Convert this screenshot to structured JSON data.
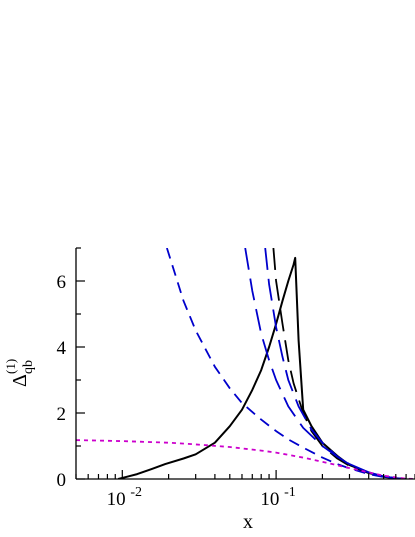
{
  "chart_data": {
    "type": "line",
    "title": "",
    "xlabel": "x",
    "ylabel": {
      "main": "Δ",
      "sub": "qb",
      "sup": "(1)"
    },
    "x_scale": "log",
    "xlim": [
      0.005,
      0.8
    ],
    "ylim": [
      0,
      7
    ],
    "x_ticks": [
      {
        "value": 0.01,
        "base": "10",
        "exp": "-2"
      },
      {
        "value": 0.1,
        "base": "10",
        "exp": "-1"
      }
    ],
    "y_ticks": [
      0,
      2,
      4,
      6
    ],
    "grid": false,
    "legend": "none",
    "series": [
      {
        "color": "#000000",
        "style": "solid",
        "x": [
          0.0094,
          0.0125,
          0.0155,
          0.019,
          0.025,
          0.03,
          0.04,
          0.05,
          0.06,
          0.07,
          0.08,
          0.09,
          0.1,
          0.11,
          0.12,
          0.13,
          0.133,
          0.14,
          0.15,
          0.17,
          0.2,
          0.25,
          0.3,
          0.4,
          0.5,
          0.6,
          0.7
        ],
        "y": [
          0.0,
          0.15,
          0.3,
          0.45,
          0.62,
          0.75,
          1.1,
          1.6,
          2.1,
          2.7,
          3.3,
          4.0,
          4.7,
          5.4,
          6.0,
          6.5,
          6.7,
          4.2,
          2.1,
          1.6,
          1.1,
          0.7,
          0.42,
          0.2,
          0.07,
          0.02,
          0.0
        ]
      },
      {
        "color": "#000000",
        "style": "longdash",
        "x": [
          0.096,
          0.1,
          0.11,
          0.12,
          0.13,
          0.15,
          0.17,
          0.2,
          0.25,
          0.3,
          0.4,
          0.5,
          0.6,
          0.7
        ],
        "y": [
          7.0,
          6.0,
          4.7,
          3.6,
          2.9,
          2.0,
          1.45,
          1.0,
          0.62,
          0.4,
          0.18,
          0.08,
          0.02,
          0.0
        ]
      },
      {
        "color": "#0000cc",
        "style": "longdash",
        "x": [
          0.085,
          0.09,
          0.1,
          0.11,
          0.12,
          0.14,
          0.17,
          0.2,
          0.25,
          0.3,
          0.4,
          0.5,
          0.6,
          0.7
        ],
        "y": [
          7.0,
          5.9,
          4.6,
          3.7,
          3.0,
          2.2,
          1.5,
          1.1,
          0.68,
          0.44,
          0.2,
          0.08,
          0.02,
          0.0
        ]
      },
      {
        "color": "#0000cc",
        "style": "longdash",
        "x": [
          0.063,
          0.07,
          0.08,
          0.09,
          0.1,
          0.12,
          0.15,
          0.2,
          0.25,
          0.3,
          0.4,
          0.5,
          0.6,
          0.7
        ],
        "y": [
          7.0,
          5.7,
          4.4,
          3.6,
          3.0,
          2.2,
          1.55,
          1.0,
          0.68,
          0.45,
          0.2,
          0.08,
          0.02,
          0.0
        ]
      },
      {
        "color": "#0000cc",
        "style": "dash",
        "x": [
          0.0195,
          0.025,
          0.03,
          0.04,
          0.05,
          0.06,
          0.08,
          0.1,
          0.12,
          0.15,
          0.2,
          0.25,
          0.3,
          0.4,
          0.5,
          0.6,
          0.7
        ],
        "y": [
          7.0,
          5.4,
          4.5,
          3.4,
          2.75,
          2.3,
          1.8,
          1.45,
          1.2,
          0.95,
          0.65,
          0.45,
          0.32,
          0.15,
          0.06,
          0.02,
          0.0
        ]
      },
      {
        "color": "#cc00cc",
        "style": "dot",
        "x": [
          0.005,
          0.01,
          0.02,
          0.03,
          0.05,
          0.08,
          0.1,
          0.15,
          0.2,
          0.3,
          0.4,
          0.5,
          0.6,
          0.7,
          0.8
        ],
        "y": [
          1.18,
          1.15,
          1.1,
          1.05,
          0.97,
          0.86,
          0.8,
          0.65,
          0.52,
          0.33,
          0.2,
          0.1,
          0.05,
          0.01,
          0.0
        ]
      }
    ]
  }
}
